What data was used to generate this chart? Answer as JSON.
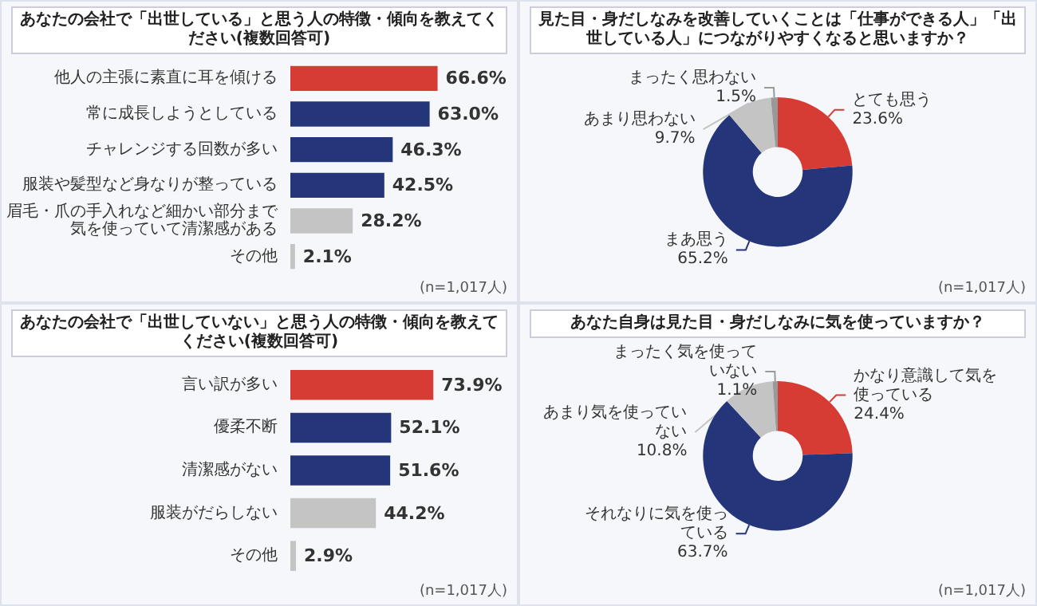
{
  "chart_data": [
    {
      "type": "bar",
      "orientation": "horizontal",
      "title": "あなたの会社で「出世している」と思う人の特徴・傾向を教えてください(複数回答可)",
      "categories": [
        "他人の主張に素直に耳を傾ける",
        "常に成長しようとしている",
        "チャレンジする回数が多い",
        "服装や髪型など身なりが整っている",
        "眉毛・爪の手入れなど細かい部分まで気を使っていて清潔感がある",
        "その他"
      ],
      "values": [
        66.6,
        63.0,
        46.3,
        42.5,
        28.2,
        2.1
      ],
      "value_labels": [
        "66.6%",
        "63.0%",
        "46.3%",
        "42.5%",
        "28.2%",
        "2.1%"
      ],
      "colors": [
        "#d63b34",
        "#24357a",
        "#24357a",
        "#24357a",
        "#c4c4c4",
        "#c4c4c4"
      ],
      "annotations": [
        "(n=1,017人)"
      ]
    },
    {
      "type": "bar",
      "orientation": "horizontal",
      "title": "あなたの会社で「出世していない」と思う人の特徴・傾向を教えてください(複数回答可)",
      "categories": [
        "言い訳が多い",
        "優柔不断",
        "清潔感がない",
        "服装がだらしない",
        "その他"
      ],
      "values": [
        73.9,
        52.1,
        51.6,
        44.2,
        2.9
      ],
      "value_labels": [
        "73.9%",
        "52.1%",
        "51.6%",
        "44.2%",
        "2.9%"
      ],
      "colors": [
        "#d63b34",
        "#24357a",
        "#24357a",
        "#c4c4c4",
        "#c4c4c4"
      ],
      "annotations": [
        "(n=1,017人)"
      ]
    },
    {
      "type": "donut",
      "title": "見た目・身だしなみを改善していくことは「仕事ができる人」「出世している人」につながりやすくなると思いますか？",
      "categories": [
        "とても思う",
        "まあ思う",
        "あまり思わない",
        "まったく思わない"
      ],
      "values": [
        23.6,
        65.2,
        9.7,
        1.5
      ],
      "value_labels": [
        "23.6%",
        "65.2%",
        "9.7%",
        "1.5%"
      ],
      "colors": [
        "#d63b34",
        "#24357a",
        "#c4c4c4",
        "#999999"
      ],
      "annotations": [
        "(n=1,017人)"
      ]
    },
    {
      "type": "donut",
      "title": "あなた自身は見た目・身だしなみに気を使っていますか？",
      "categories": [
        "かなり意識して気を使っている",
        "それなりに気を使っている",
        "あまり気を使っていない",
        "まったく気を使っていない"
      ],
      "values": [
        24.4,
        63.7,
        10.8,
        1.1
      ],
      "value_labels": [
        "24.4%",
        "63.7%",
        "10.8%",
        "1.1%"
      ],
      "colors": [
        "#d63b34",
        "#24357a",
        "#c4c4c4",
        "#999999"
      ],
      "annotations": [
        "(n=1,017人)"
      ]
    }
  ]
}
